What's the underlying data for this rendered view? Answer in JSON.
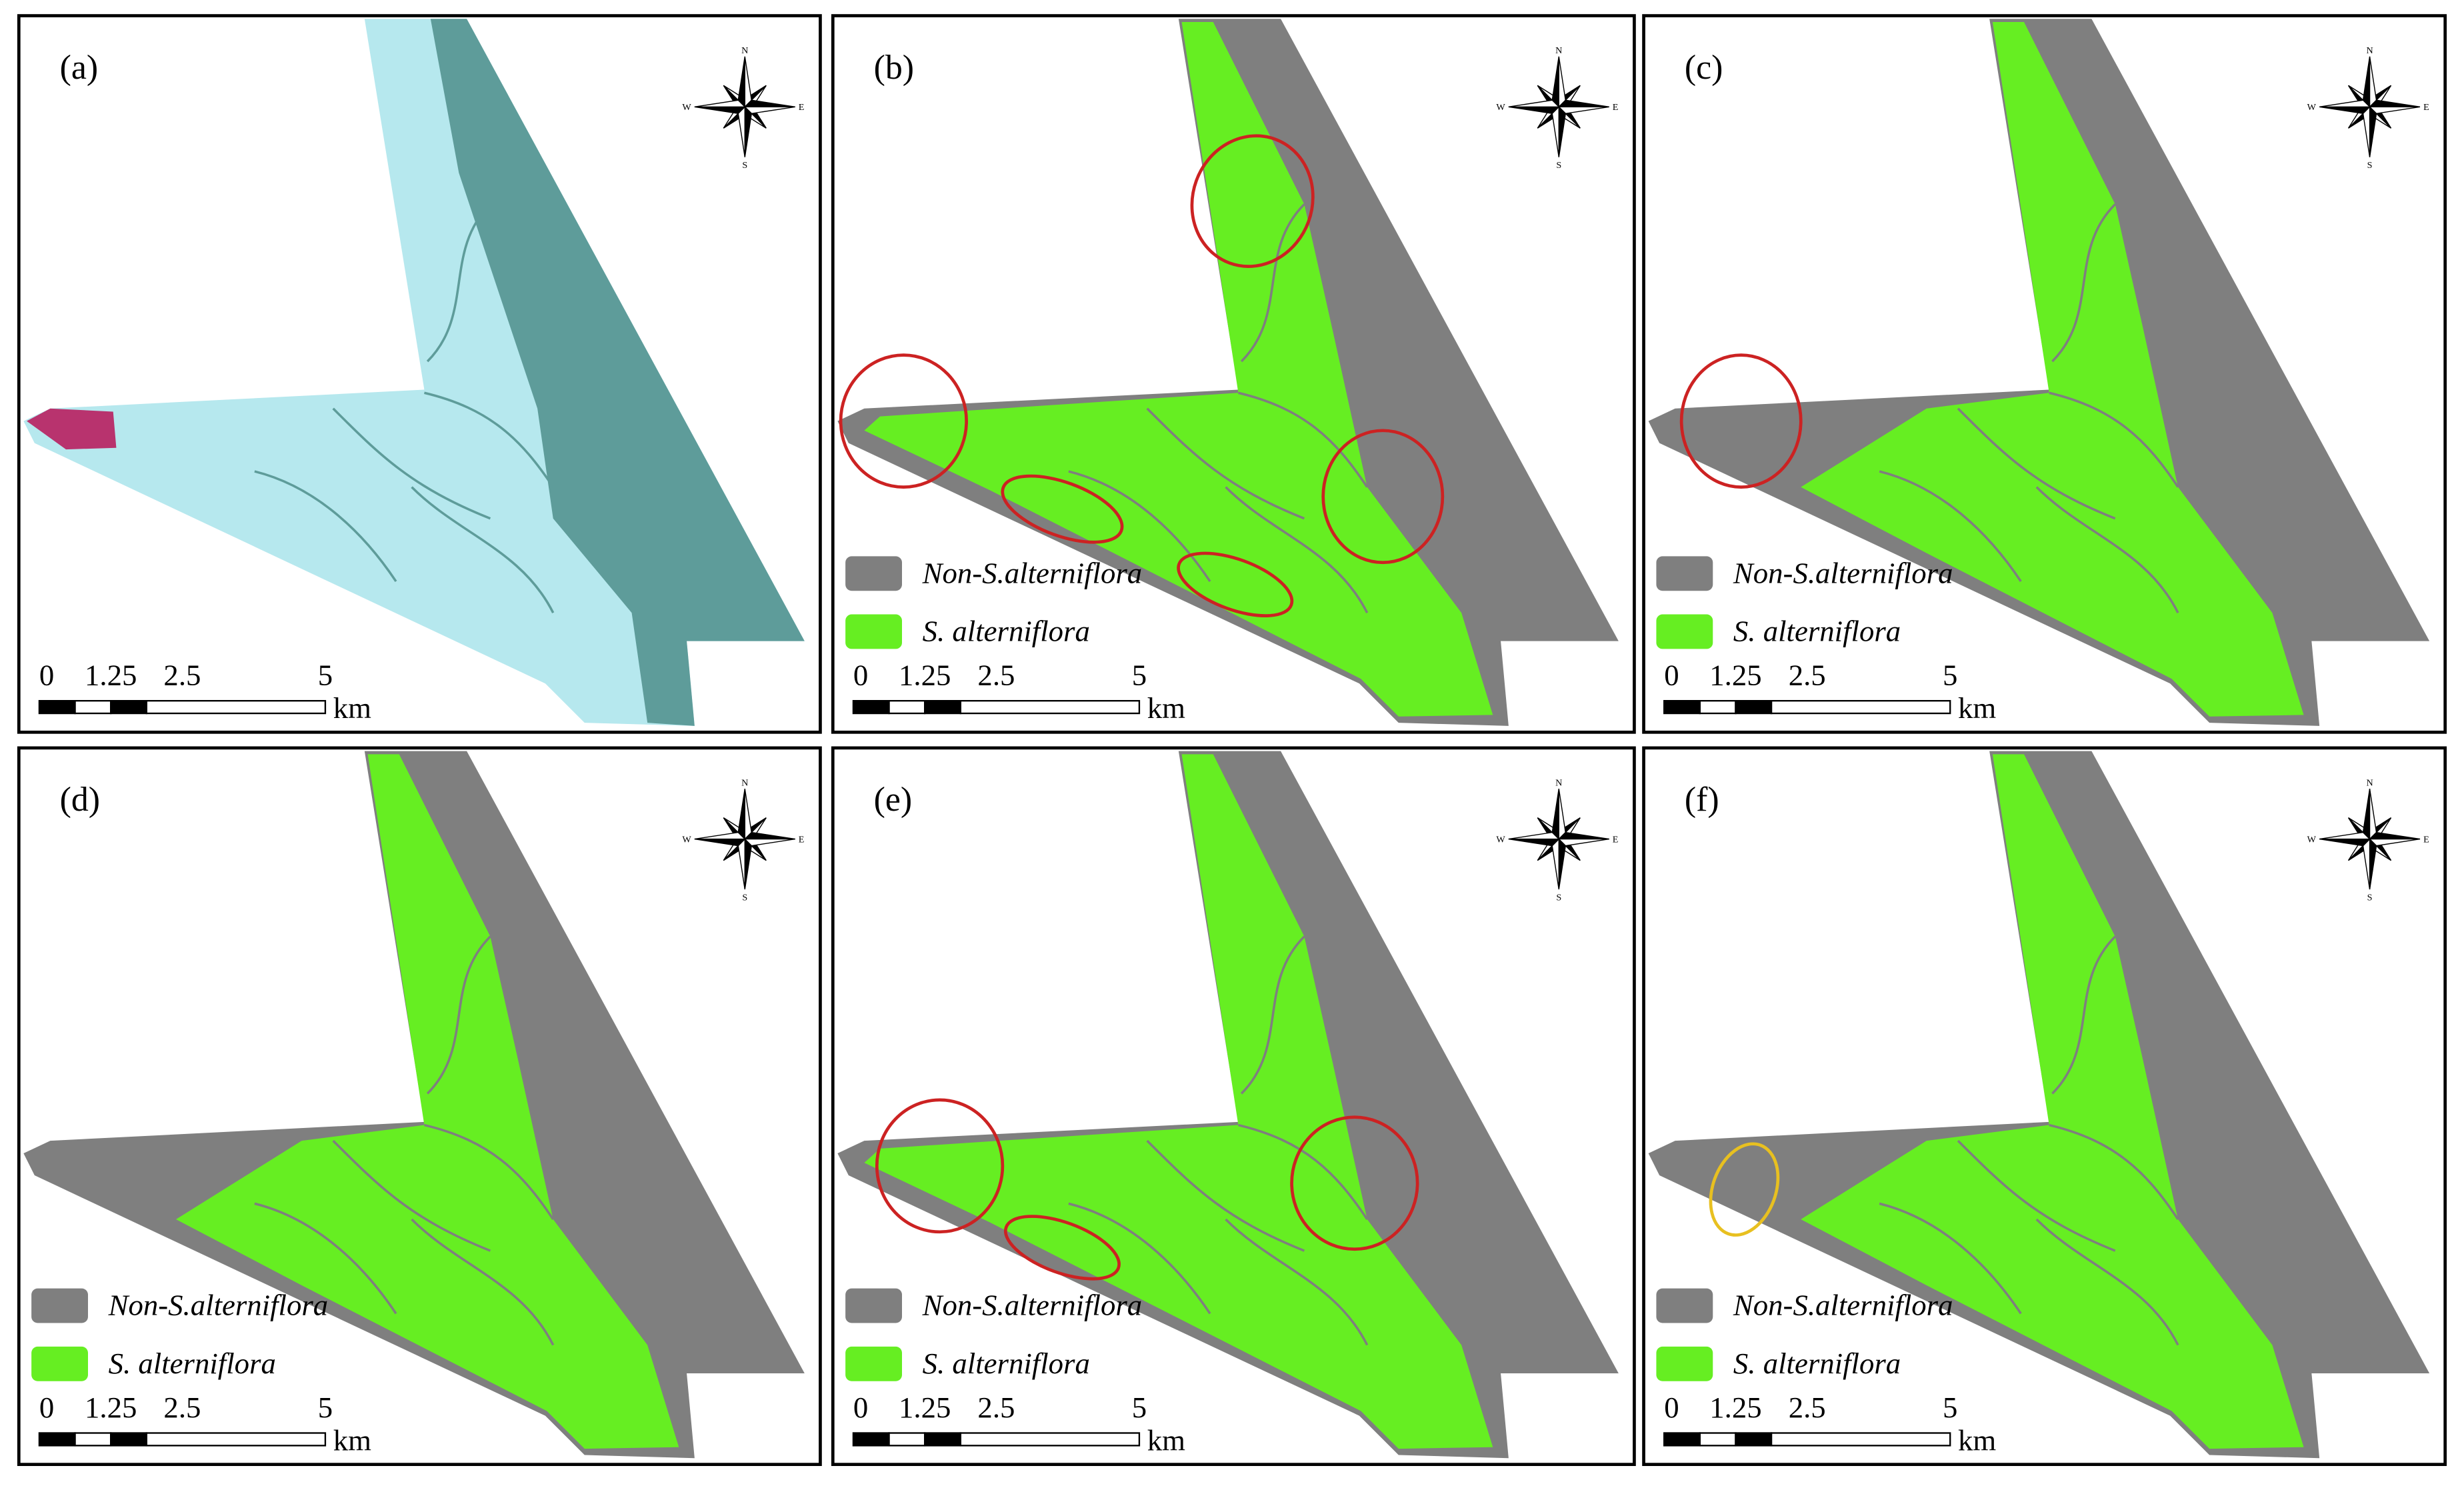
{
  "panels": [
    {
      "label": "(a)"
    },
    {
      "label": "(b)"
    },
    {
      "label": "(c)"
    },
    {
      "label": "(d)"
    },
    {
      "label": "(e)"
    },
    {
      "label": "(f)"
    }
  ],
  "legend": {
    "items": [
      {
        "label": "Non-S.alterniflora",
        "color": "#7f7f7f"
      },
      {
        "label": "S. alterniflora",
        "color": "#66ee22"
      }
    ]
  },
  "scale_bar": {
    "ticks": [
      "0",
      "1.25",
      "2.5",
      "5"
    ],
    "unit": "km"
  },
  "compass": {
    "N": "N",
    "S": "S",
    "W": "W",
    "E": "E"
  }
}
